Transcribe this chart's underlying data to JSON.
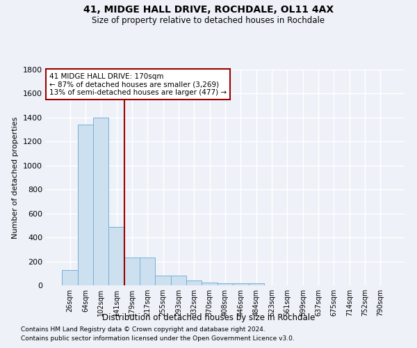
{
  "title": "41, MIDGE HALL DRIVE, ROCHDALE, OL11 4AX",
  "subtitle": "Size of property relative to detached houses in Rochdale",
  "xlabel": "Distribution of detached houses by size in Rochdale",
  "ylabel": "Number of detached properties",
  "bar_labels": [
    "26sqm",
    "64sqm",
    "102sqm",
    "141sqm",
    "179sqm",
    "217sqm",
    "255sqm",
    "293sqm",
    "332sqm",
    "370sqm",
    "408sqm",
    "446sqm",
    "484sqm",
    "523sqm",
    "561sqm",
    "599sqm",
    "637sqm",
    "675sqm",
    "714sqm",
    "752sqm",
    "790sqm"
  ],
  "bar_values": [
    130,
    1340,
    1400,
    490,
    230,
    230,
    80,
    80,
    40,
    25,
    20,
    20,
    20,
    0,
    0,
    0,
    0,
    0,
    0,
    0,
    0
  ],
  "bar_color": "#cce0f0",
  "bar_edge_color": "#7bafd4",
  "vline_color": "#990000",
  "vline_x_index": 3.5,
  "annotation_text": "41 MIDGE HALL DRIVE: 170sqm\n← 87% of detached houses are smaller (3,269)\n13% of semi-detached houses are larger (477) →",
  "annotation_box_color": "#990000",
  "annotation_bg": "white",
  "ylim": [
    0,
    1800
  ],
  "yticks": [
    0,
    200,
    400,
    600,
    800,
    1000,
    1200,
    1400,
    1600,
    1800
  ],
  "footnote1": "Contains HM Land Registry data © Crown copyright and database right 2024.",
  "footnote2": "Contains public sector information licensed under the Open Government Licence v3.0.",
  "bg_color": "#eef2f8",
  "grid_color": "white",
  "title_fontsize": 10,
  "subtitle_fontsize": 8.5
}
